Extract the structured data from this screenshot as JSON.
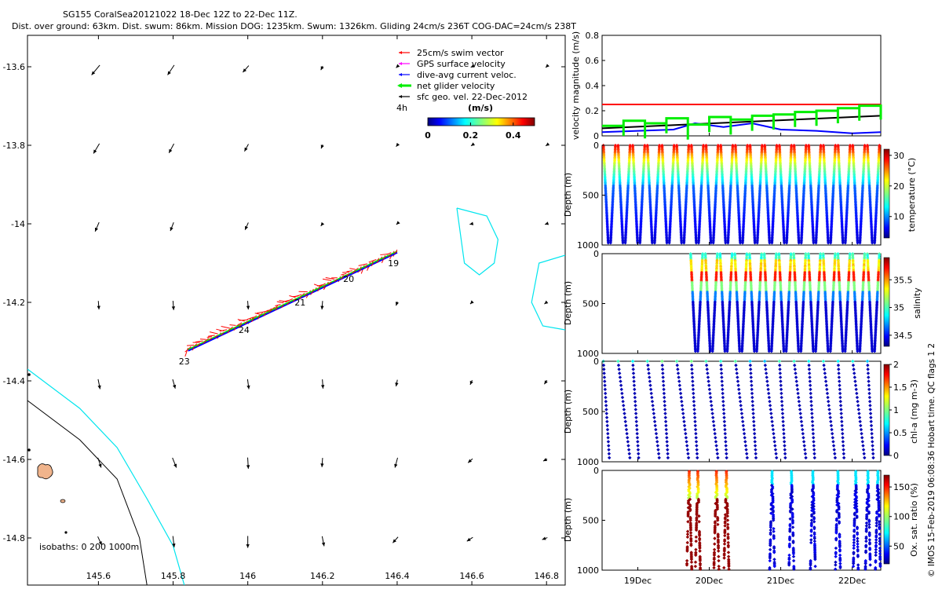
{
  "header": {
    "title": "SG155 CoralSea20121022 18-Dec 12Z to 22-Dec 11Z.",
    "subtitle": "Dist. over ground: 63km. Dist. swum: 86km. Mission DOG: 1235km. Swum: 1326km. Gliding 24cm/s 236T COG-DAC=24cm/s 238T"
  },
  "side_note": "© IMOS 15-Feb-2019 06:08:36 Hobart time. QC flags 1  2",
  "colors": {
    "swim_vector": "#ff0000",
    "gps_velocity": "#ff00ff",
    "dive_avg_current": "#0000ff",
    "net_glider_velocity": "#00ee00",
    "sfc_geo_vel": "#000000",
    "isobath_200": "#00e5ee",
    "isobath_1000": "#000000",
    "land": "#f0b48c"
  },
  "chart_data": [
    {
      "id": "map",
      "type": "scatter",
      "xlim": [
        145.41,
        146.85
      ],
      "ylim": [
        -14.92,
        -13.52
      ],
      "x_ticks": [
        "145.6",
        "145.8",
        "146",
        "146.2",
        "146.4",
        "146.6",
        "146.8"
      ],
      "y_ticks": [
        "-13.6",
        "-13.8",
        "-14",
        "-14.2",
        "-14.4",
        "-14.6",
        "-14.8"
      ],
      "legend": {
        "placement": "top-right",
        "entries": [
          "25cm/s swim vector",
          "GPS surface velocity",
          "dive-avg current veloc.",
          "net glider velocity",
          "sfc geo. vel. 22-Dec-2012"
        ],
        "time_label": "4h"
      },
      "colorbar": {
        "label": "(m/s)",
        "ticks": [
          "0",
          "0.2",
          "0.4"
        ],
        "range": [
          0,
          0.5
        ]
      },
      "isobath_note": "isobaths: 0   200  1000m",
      "track": {
        "start": [
          145.84,
          -14.32
        ],
        "end": [
          146.4,
          -14.07
        ]
      },
      "day_labels": [
        {
          "text": "19",
          "lon": 146.39,
          "lat": -14.1
        },
        {
          "text": "20",
          "lon": 146.27,
          "lat": -14.14
        },
        {
          "text": "21",
          "lon": 146.14,
          "lat": -14.2
        },
        {
          "text": "24",
          "lon": 145.99,
          "lat": -14.27
        },
        {
          "text": "23",
          "lon": 145.83,
          "lat": -14.35
        }
      ],
      "vector_grid": {
        "lons": [
          145.6,
          145.8,
          146.0,
          146.2,
          146.4,
          146.6,
          146.8
        ],
        "lats": [
          -13.6,
          -13.8,
          -14.0,
          -14.2,
          -14.4,
          -14.6,
          -14.8
        ],
        "u": [
          [
            -0.25,
            -0.2,
            -0.18,
            -0.06,
            -0.04,
            -0.04,
            -0.03
          ],
          [
            -0.18,
            -0.15,
            -0.12,
            -0.05,
            -0.04,
            -0.03,
            -0.03
          ],
          [
            -0.12,
            -0.1,
            -0.1,
            -0.06,
            -0.03,
            -0.08,
            -0.06
          ],
          [
            0.02,
            0.02,
            0.02,
            -0.02,
            -0.04,
            -0.06,
            -0.08
          ],
          [
            0.06,
            0.08,
            0.04,
            0.02,
            -0.04,
            -0.06,
            -0.08
          ],
          [
            0.1,
            0.12,
            0.02,
            -0.02,
            -0.08,
            -0.14,
            -0.12
          ],
          [
            0.12,
            0.04,
            0.0,
            0.06,
            -0.16,
            -0.18,
            -0.16
          ]
        ],
        "v": [
          [
            -0.3,
            -0.3,
            -0.2,
            -0.12,
            -0.04,
            -0.02,
            -0.03
          ],
          [
            -0.3,
            -0.28,
            -0.22,
            -0.12,
            -0.05,
            -0.02,
            -0.02
          ],
          [
            -0.28,
            -0.26,
            -0.22,
            -0.08,
            -0.03,
            -0.02,
            -0.02
          ],
          [
            -0.26,
            -0.28,
            -0.26,
            -0.26,
            -0.12,
            -0.06,
            -0.06
          ],
          [
            -0.3,
            -0.28,
            -0.3,
            -0.28,
            -0.2,
            -0.14,
            -0.12
          ],
          [
            -0.3,
            -0.3,
            -0.34,
            -0.28,
            -0.3,
            -0.12,
            -0.06
          ],
          [
            -0.26,
            -0.34,
            -0.36,
            -0.3,
            -0.18,
            -0.12,
            -0.06
          ]
        ]
      },
      "isobath_200": [
        [
          145.41,
          -14.37
        ],
        [
          145.55,
          -14.47
        ],
        [
          145.65,
          -14.57
        ],
        [
          145.73,
          -14.7
        ],
        [
          145.8,
          -14.82
        ],
        [
          145.83,
          -14.92
        ]
      ],
      "isobath_1000": [
        [
          145.41,
          -14.45
        ],
        [
          145.55,
          -14.55
        ],
        [
          145.65,
          -14.65
        ],
        [
          145.71,
          -14.8
        ],
        [
          145.73,
          -14.92
        ]
      ],
      "isobath_200_island": [
        [
          146.56,
          -13.96
        ],
        [
          146.64,
          -13.98
        ],
        [
          146.67,
          -14.04
        ],
        [
          146.66,
          -14.1
        ],
        [
          146.62,
          -14.13
        ],
        [
          146.58,
          -14.1
        ],
        [
          146.57,
          -14.03
        ],
        [
          146.56,
          -13.96
        ]
      ],
      "isobath_200_east": [
        [
          146.85,
          -14.08
        ],
        [
          146.78,
          -14.1
        ],
        [
          146.76,
          -14.2
        ],
        [
          146.79,
          -14.26
        ],
        [
          146.85,
          -14.27
        ]
      ]
    },
    {
      "id": "velocity",
      "type": "line",
      "ylabel": "velocity magnitude (m/s)",
      "ylim": [
        0,
        0.8
      ],
      "y_ticks": [
        "0",
        "0.2",
        "0.4",
        "0.6",
        "0.8"
      ],
      "series": [
        {
          "color": "#ff0000",
          "x": [
            18.5,
            22.4
          ],
          "y": [
            0.25,
            0.25
          ]
        },
        {
          "color": "#000000",
          "x": [
            18.5,
            22.4
          ],
          "y": [
            0.06,
            0.16
          ]
        },
        {
          "color": "#0000ff",
          "x": [
            18.5,
            19.0,
            19.5,
            19.8,
            20.2,
            20.6,
            21.0,
            21.5,
            22.0,
            22.4
          ],
          "y": [
            0.03,
            0.04,
            0.05,
            0.1,
            0.07,
            0.1,
            0.05,
            0.04,
            0.02,
            0.03
          ]
        },
        {
          "color": "#00ee00",
          "x": [
            18.5,
            18.8,
            19.1,
            19.4,
            19.7,
            20.0,
            20.3,
            20.6,
            20.9,
            21.2,
            21.5,
            21.8,
            22.1,
            22.4
          ],
          "y": [
            0.08,
            0.12,
            0.1,
            0.14,
            0.09,
            0.15,
            0.13,
            0.16,
            0.17,
            0.19,
            0.2,
            0.22,
            0.24,
            0.25
          ]
        }
      ]
    },
    {
      "id": "temperature",
      "type": "scatter",
      "ylabel": "Depth (m)",
      "ylim": [
        0,
        1000
      ],
      "y_ticks": [
        "0",
        "500",
        "1000"
      ],
      "colorbar": {
        "label": "temperature (°C)",
        "ticks": [
          "10",
          "20",
          "30"
        ],
        "range": [
          3,
          32
        ]
      },
      "data_window": [
        18.5,
        22.4
      ],
      "dives_per_day": 5,
      "max_depth": 980
    },
    {
      "id": "salinity",
      "type": "scatter",
      "ylabel": "Depth (m)",
      "ylim": [
        0,
        1000
      ],
      "y_ticks": [
        "0",
        "500",
        "1000"
      ],
      "colorbar": {
        "label": "salinity",
        "ticks": [
          "34.5",
          "35",
          "35.5"
        ],
        "range": [
          34.3,
          35.9
        ]
      },
      "data_window": [
        19.72,
        22.4
      ],
      "dives_per_day": 5,
      "max_depth": 980
    },
    {
      "id": "chla",
      "type": "scatter",
      "ylabel": "Depth (m)",
      "ylim": [
        0,
        1000
      ],
      "y_ticks": [
        "0",
        "500",
        "1000"
      ],
      "colorbar": {
        "label": "chl-a (mg m-3)",
        "ticks": [
          "0",
          "0.5",
          "1",
          "1.5",
          "2"
        ],
        "range": [
          0,
          2
        ]
      },
      "data_window": [
        18.5,
        22.4
      ],
      "dives_per_day": 5,
      "max_depth": 980
    },
    {
      "id": "oxygen",
      "type": "scatter",
      "ylabel": "Depth (m)",
      "ylim": [
        0,
        1000
      ],
      "y_ticks": [
        "0",
        "500",
        "1000"
      ],
      "x_ticks": [
        "19Dec",
        "20Dec",
        "21Dec",
        "22Dec"
      ],
      "colorbar": {
        "label": "Ox. sat. ratio (%)",
        "ticks": [
          "50",
          "100",
          "150"
        ],
        "range": [
          20,
          170
        ]
      },
      "profiles": [
        {
          "t": 19.72,
          "type": "warm"
        },
        {
          "t": 19.84,
          "type": "warm"
        },
        {
          "t": 20.1,
          "type": "warm"
        },
        {
          "t": 20.24,
          "type": "warm"
        },
        {
          "t": 20.88,
          "type": "cold"
        },
        {
          "t": 21.15,
          "type": "cold"
        },
        {
          "t": 21.45,
          "type": "cold"
        },
        {
          "t": 21.8,
          "type": "cold"
        },
        {
          "t": 22.05,
          "type": "cold"
        },
        {
          "t": 22.22,
          "type": "cold"
        },
        {
          "t": 22.36,
          "type": "cold"
        }
      ]
    }
  ]
}
